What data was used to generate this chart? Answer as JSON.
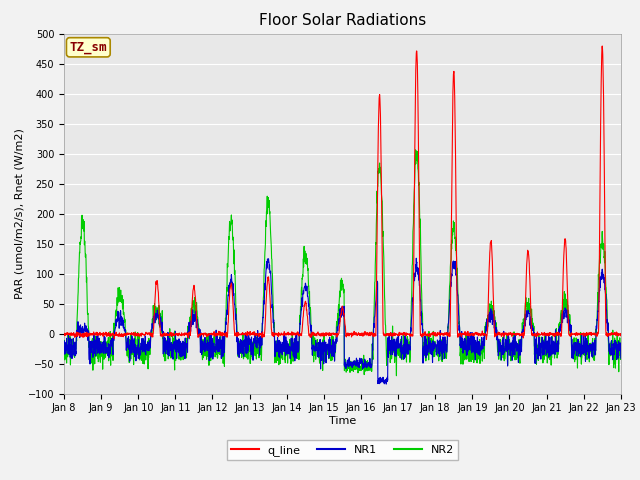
{
  "title": "Floor Solar Radiations",
  "xlabel": "Time",
  "ylabel": "PAR (umol/m2/s), Rnet (W/m2)",
  "ylim": [
    -100,
    500
  ],
  "yticks": [
    -100,
    -50,
    0,
    50,
    100,
    150,
    200,
    250,
    300,
    350,
    400,
    450,
    500
  ],
  "plot_bg_color": "#e8e8e8",
  "fig_bg_color": "#f2f2f2",
  "grid_color": "#ffffff",
  "legend_label": "TZ_sm",
  "legend_bg": "#ffffcc",
  "legend_border": "#aa8800",
  "line_colors": {
    "q_line": "#ff0000",
    "NR1": "#0000cc",
    "NR2": "#00cc00"
  },
  "line_width": 0.8,
  "tick_labels": [
    "Jan 8",
    "Jan 9",
    "Jan 10",
    "Jan 11",
    "Jan 12",
    "Jan 13",
    "Jan 14",
    "Jan 15",
    "Jan 16",
    "Jan 17",
    "Jan 18",
    "Jan 19",
    "Jan 20",
    "Jan 21",
    "Jan 22",
    "Jan 23"
  ],
  "n_days": 15,
  "pts_per_day": 144,
  "title_fontsize": 11,
  "label_fontsize": 8,
  "tick_fontsize": 7,
  "legend_fontsize": 8
}
